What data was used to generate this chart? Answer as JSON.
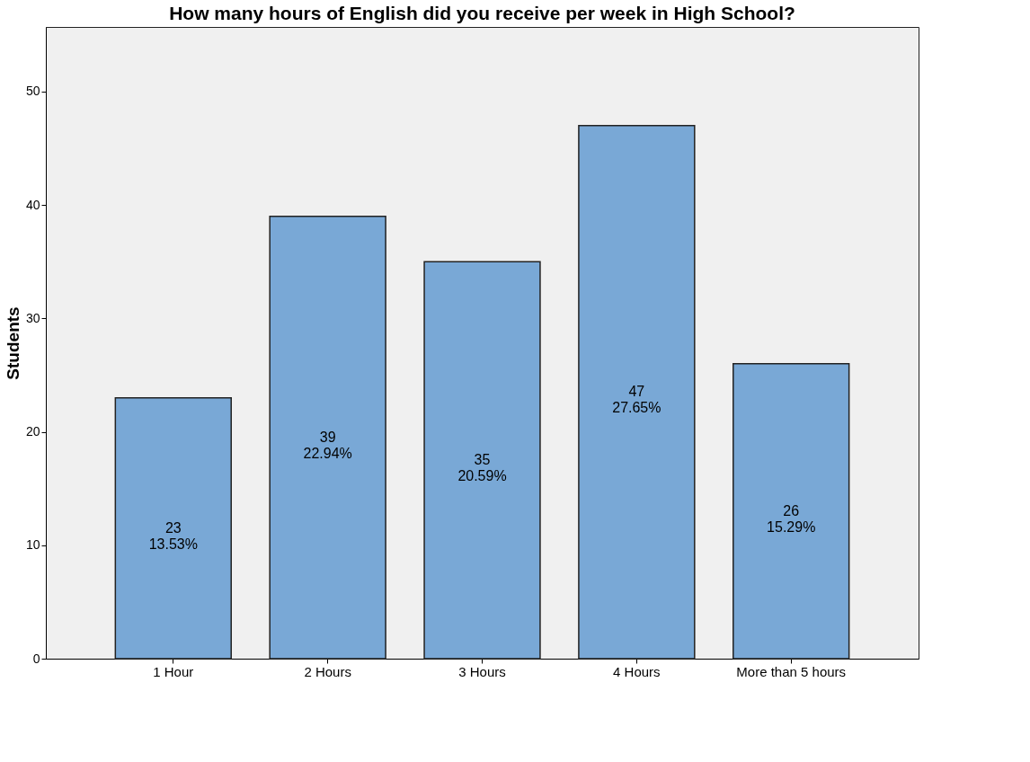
{
  "chart_data": {
    "type": "bar",
    "title": "How many hours of English did you receive per week in  High School?",
    "ylabel": "Students",
    "categories": [
      "1 Hour",
      "2 Hours",
      "3 Hours",
      "4 Hours",
      "More than 5 hours"
    ],
    "values": [
      23,
      39,
      35,
      47,
      26
    ],
    "color": "#79a8d6",
    "value_labels": [
      "23\n13.53%",
      "39\n22.94%",
      "35\n20.59%",
      "47\n27.65%",
      "26\n15.29%"
    ],
    "ylim": [
      0,
      55.7
    ],
    "yticks": [
      0,
      10,
      20,
      30,
      40,
      50
    ],
    "grid": false
  }
}
